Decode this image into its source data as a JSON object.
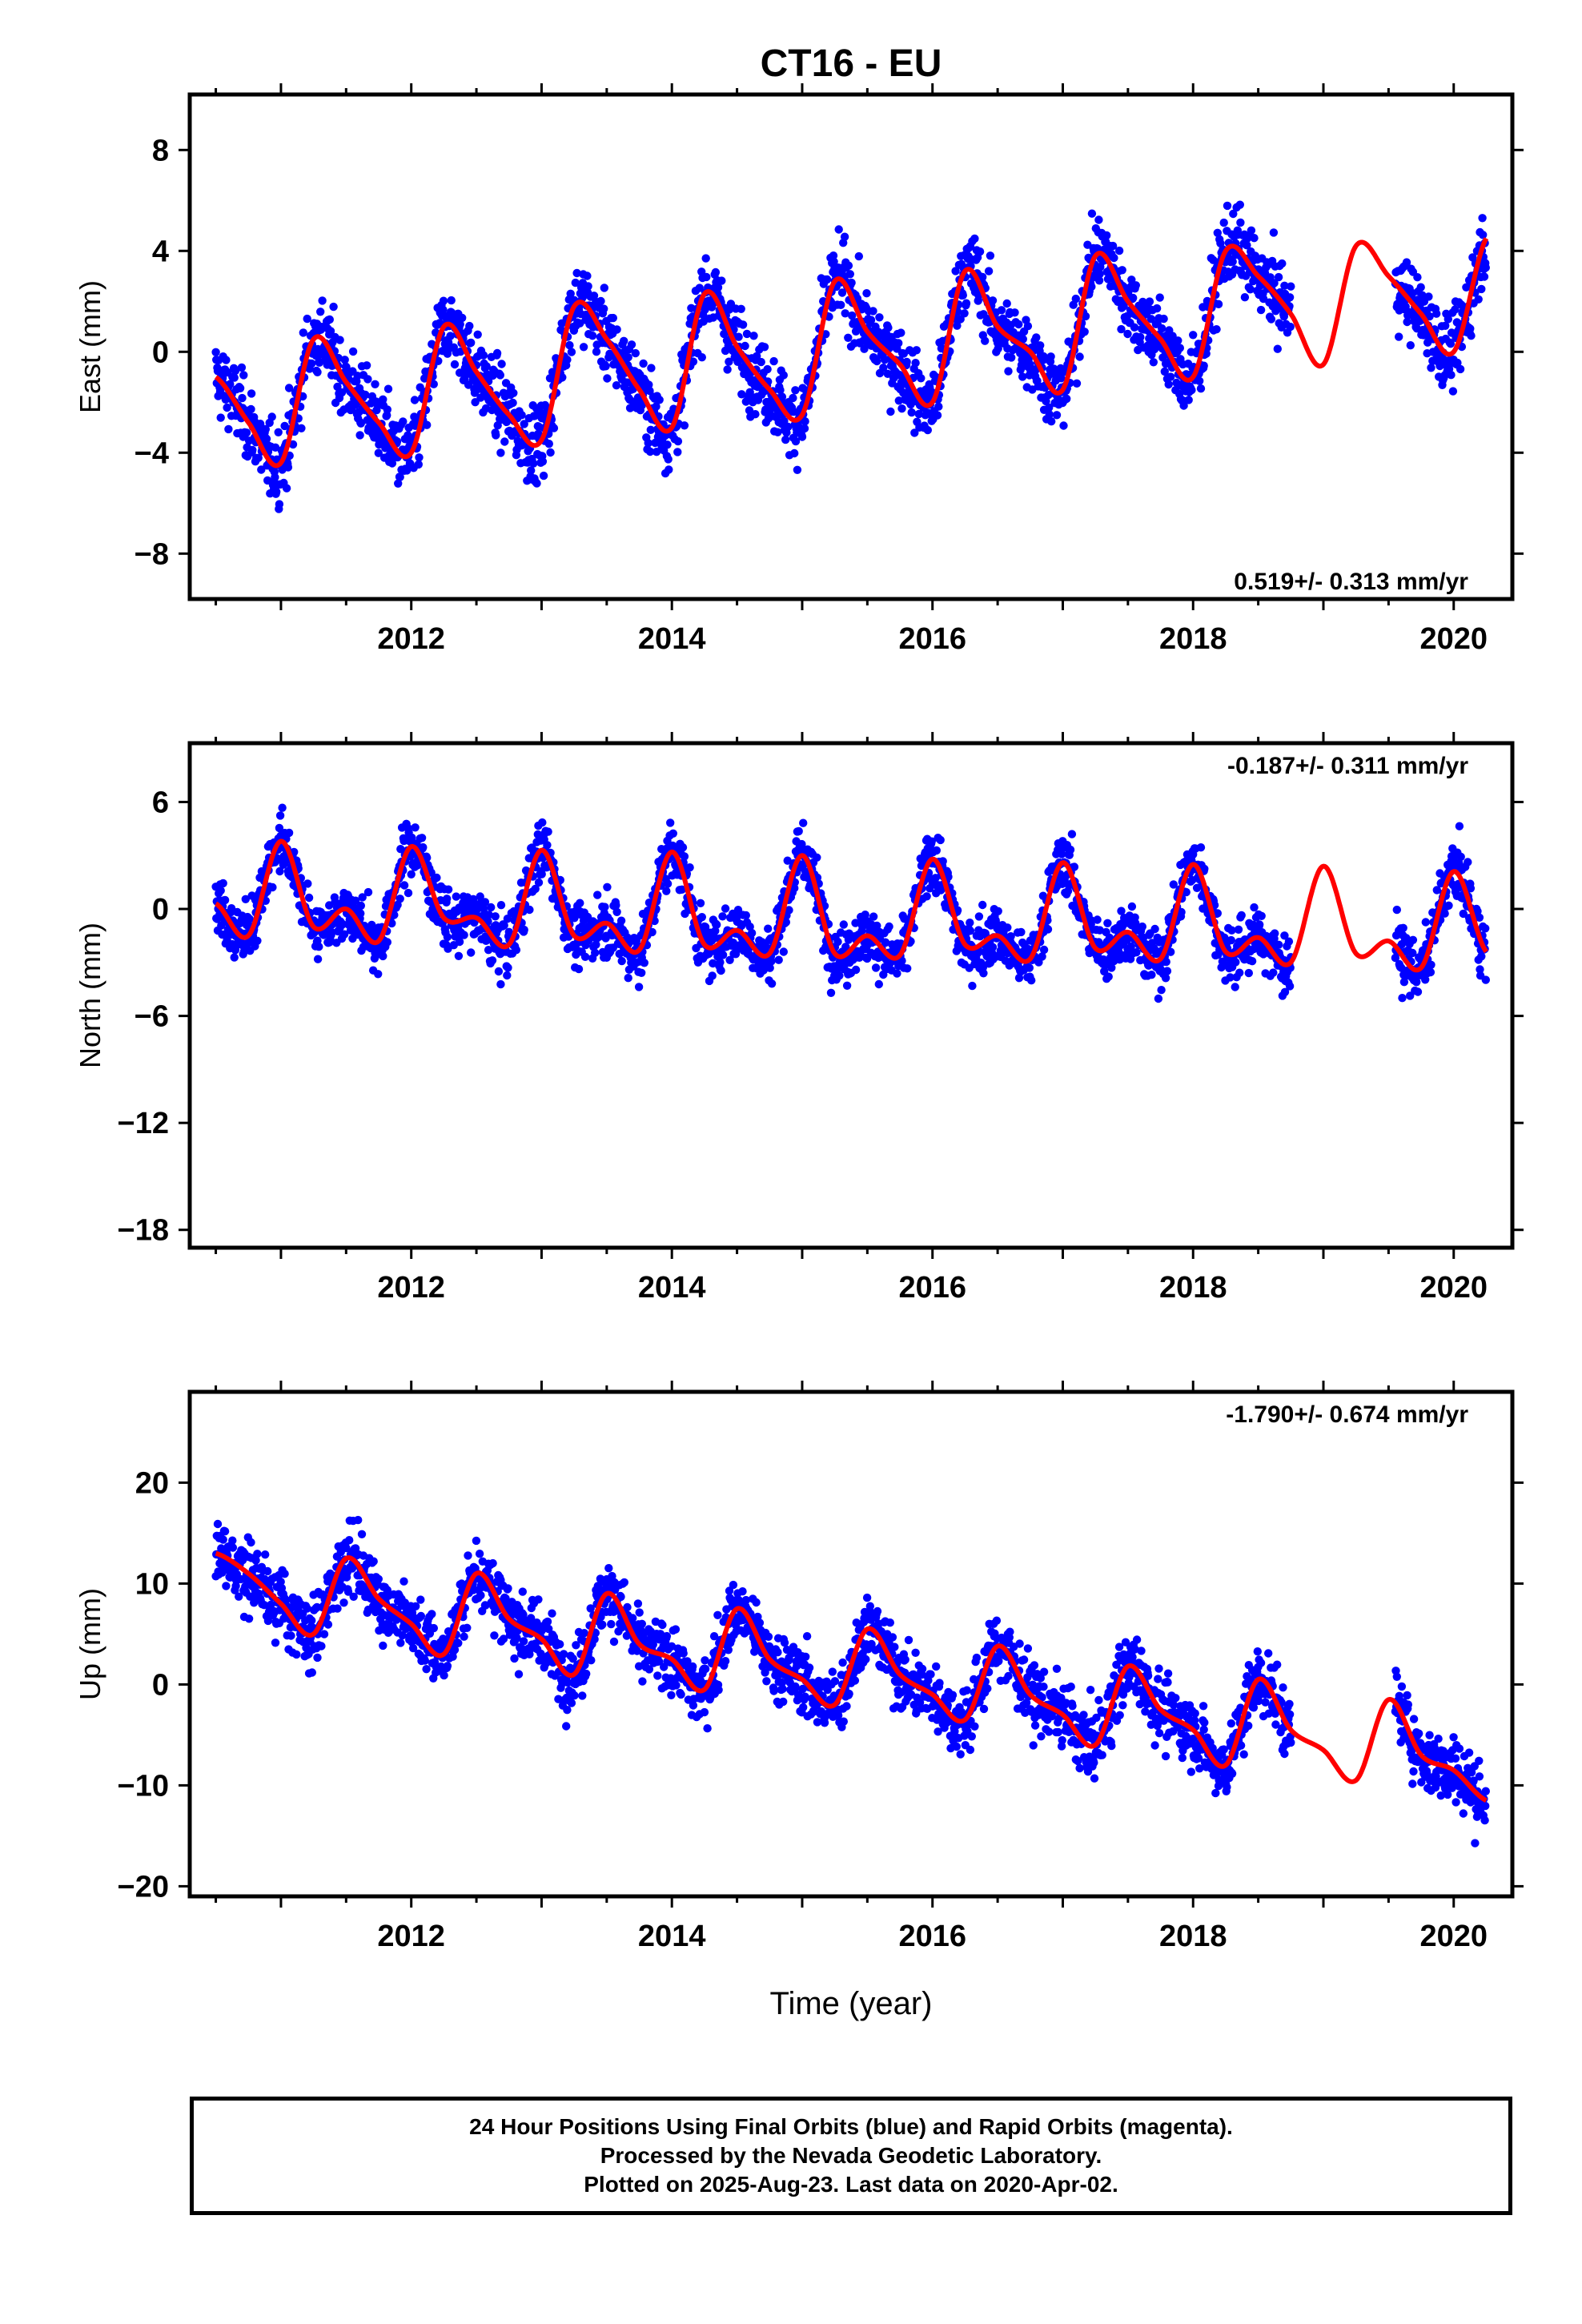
{
  "title": "CT16 - EU",
  "xlabel": "Time (year)",
  "caption": {
    "line1": "24 Hour Positions Using Final Orbits (blue) and Rapid Orbits (magenta).",
    "line2": "Processed by the Nevada Geodetic Laboratory.",
    "line3": "Plotted on 2025-Aug-23. Last data on 2020-Apr-02."
  },
  "colors": {
    "final_orbits": "#0000ff",
    "fit_curve": "#ff0000",
    "axes": "#000000"
  },
  "chart_data": [
    {
      "type": "scatter",
      "name": "east",
      "ylabel": "East (mm)",
      "rate_label": "0.519+/- 0.313 mm/yr",
      "rate_position": "bottom-right",
      "xlim": [
        2010.3,
        2020.45
      ],
      "ylim": [
        -9.8,
        10.2
      ],
      "xticks": [
        2012,
        2014,
        2016,
        2018,
        2020
      ],
      "yticks": [
        -8,
        -4,
        0,
        4,
        8
      ],
      "ytick_labels": [
        "−8",
        "−4",
        "0",
        "4",
        "8"
      ],
      "grid": false,
      "data_gap": [
        2018.75,
        2019.55
      ],
      "trend": {
        "value_at_2015": 0.5,
        "rate": 0.519
      },
      "seasonal": {
        "annual_amplitude": 3.0,
        "peak_phase": 0.38
      },
      "scatter_sigma": 1.9,
      "fit_curve": {
        "x": [
          2010.5,
          2010.75,
          2011.0,
          2011.25,
          2011.5,
          2011.75,
          2012.0,
          2012.25,
          2012.5,
          2012.75,
          2013.0,
          2013.25,
          2013.5,
          2013.75,
          2014.0,
          2014.25,
          2014.5,
          2014.75,
          2015.0,
          2015.25,
          2015.5,
          2015.75,
          2016.0,
          2016.25,
          2016.5,
          2016.75,
          2017.0,
          2017.25,
          2017.5,
          2017.75,
          2018.0,
          2018.25,
          2018.5,
          2018.75,
          2019.0,
          2019.25,
          2019.5,
          2019.75,
          2020.0,
          2020.25
        ],
        "y": [
          -1.0,
          -2.8,
          -4.4,
          0.5,
          -1.2,
          -2.8,
          -4.0,
          1.0,
          -0.8,
          -2.5,
          -3.5,
          1.8,
          0.5,
          -1.5,
          -3.0,
          2.3,
          0.2,
          -1.5,
          -2.5,
          2.8,
          0.8,
          -0.5,
          -2.0,
          3.2,
          1.0,
          0.0,
          -1.5,
          3.8,
          2.0,
          0.5,
          -1.0,
          4.0,
          3.0,
          1.5,
          -0.5,
          4.2,
          3.0,
          1.5,
          0.0,
          4.5
        ]
      }
    },
    {
      "type": "scatter",
      "name": "north",
      "ylabel": "North (mm)",
      "rate_label": "-0.187+/- 0.311 mm/yr",
      "rate_position": "top-right",
      "xlim": [
        2010.3,
        2020.45
      ],
      "ylim": [
        -19,
        9.3
      ],
      "xticks": [
        2012,
        2014,
        2016,
        2018,
        2020
      ],
      "yticks": [
        -18,
        -12,
        -6,
        0,
        6
      ],
      "ytick_labels": [
        "−18",
        "−12",
        "−6",
        "0",
        "6"
      ],
      "grid": false,
      "data_gap": [
        2018.75,
        2019.55
      ],
      "trend": {
        "value_at_2015": 0.0,
        "rate": -0.187
      },
      "seasonal": {
        "annual_amplitude": 2.2,
        "peak_phase": 0.02
      },
      "scatter_sigma": 2.1,
      "fit_curve": {
        "x": [
          2010.5,
          2010.75,
          2011.0,
          2011.25,
          2011.5,
          2011.75,
          2012.0,
          2012.25,
          2012.5,
          2012.75,
          2013.0,
          2013.25,
          2013.5,
          2013.75,
          2014.0,
          2014.25,
          2014.5,
          2014.75,
          2015.0,
          2015.25,
          2015.5,
          2015.75,
          2016.0,
          2016.25,
          2016.5,
          2016.75,
          2017.0,
          2017.25,
          2017.5,
          2017.75,
          2018.0,
          2018.25,
          2018.5,
          2018.75,
          2019.0,
          2019.25,
          2019.5,
          2019.75,
          2020.0,
          2020.25
        ],
        "y": [
          0.3,
          -1.5,
          3.8,
          -1.0,
          0.0,
          -1.8,
          3.5,
          -0.5,
          -0.5,
          -2.0,
          3.3,
          -1.5,
          -0.8,
          -2.3,
          3.2,
          -2.0,
          -1.2,
          -2.5,
          3.0,
          -2.5,
          -1.5,
          -2.6,
          2.8,
          -2.0,
          -1.5,
          -2.8,
          2.6,
          -2.2,
          -1.3,
          -2.8,
          2.5,
          -2.4,
          -1.6,
          -3.0,
          2.4,
          -2.5,
          -1.8,
          -3.3,
          2.1,
          -2.4
        ]
      }
    },
    {
      "type": "scatter",
      "name": "up",
      "ylabel": "Up (mm)",
      "rate_label": "-1.790+/- 0.674 mm/yr",
      "rate_position": "top-right",
      "xlim": [
        2010.3,
        2020.45
      ],
      "ylim": [
        -21,
        29
      ],
      "xticks": [
        2012,
        2014,
        2016,
        2018,
        2020
      ],
      "yticks": [
        -20,
        -10,
        0,
        10,
        20
      ],
      "ytick_labels": [
        "−20",
        "−10",
        "0",
        "10",
        "20"
      ],
      "grid": false,
      "data_gap": [
        2018.75,
        2019.55
      ],
      "trend": {
        "value_at_2015": 1.0,
        "rate": -1.79
      },
      "seasonal": {
        "annual_amplitude": 4.5,
        "peak_phase": 0.6
      },
      "scatter_sigma": 4.2,
      "fit_curve": {
        "x": [
          2010.5,
          2010.75,
          2011.0,
          2011.25,
          2011.5,
          2011.75,
          2012.0,
          2012.25,
          2012.5,
          2012.75,
          2013.0,
          2013.25,
          2013.5,
          2013.75,
          2014.0,
          2014.25,
          2014.5,
          2014.75,
          2015.0,
          2015.25,
          2015.5,
          2015.75,
          2016.0,
          2016.25,
          2016.5,
          2016.75,
          2017.0,
          2017.25,
          2017.5,
          2017.75,
          2018.0,
          2018.25,
          2018.5,
          2018.75,
          2019.0,
          2019.25,
          2019.5,
          2019.75,
          2020.0,
          2020.25
        ],
        "y": [
          13.0,
          11.0,
          8.0,
          5.0,
          12.5,
          8.5,
          6.0,
          3.0,
          11.0,
          6.5,
          4.5,
          1.0,
          9.0,
          4.0,
          2.5,
          -0.5,
          7.5,
          2.5,
          0.5,
          -2.0,
          5.5,
          1.0,
          -1.0,
          -3.5,
          3.8,
          -1.0,
          -3.0,
          -6.0,
          1.8,
          -2.5,
          -4.5,
          -8.0,
          0.5,
          -4.5,
          -6.5,
          -9.5,
          -1.5,
          -7.0,
          -8.5,
          -11.5
        ]
      }
    }
  ]
}
